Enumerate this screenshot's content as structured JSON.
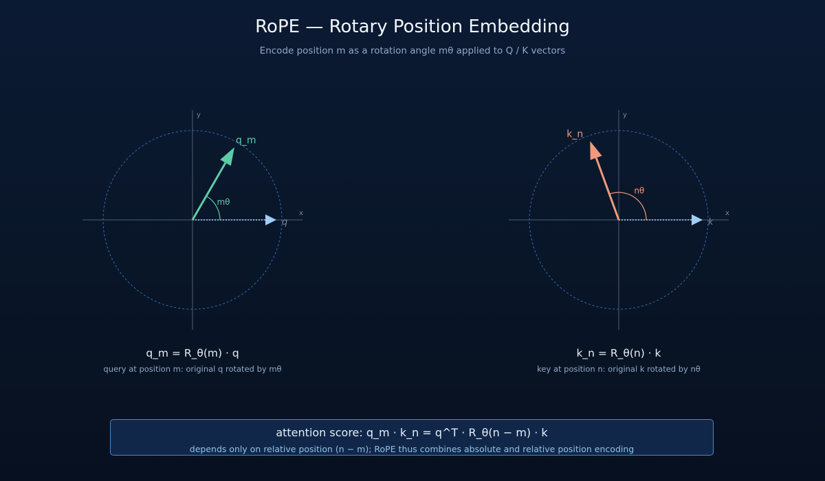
{
  "header": {
    "title": "RoPE — Rotary Position Embedding",
    "subtitle": "Encode position m as a rotation angle mθ applied to Q / K vectors"
  },
  "panels": [
    {
      "id": "query",
      "axis_x_label": "x",
      "axis_y_label": "y",
      "base_vector_label": "q",
      "rotated_vector_label": "q_m",
      "angle_label": "mθ",
      "rotation_angle_deg": 60,
      "color": "#5ecba7",
      "formula": "q_m = R_θ(m) · q",
      "note": "query at position m: original q rotated by mθ"
    },
    {
      "id": "key",
      "axis_x_label": "x",
      "axis_y_label": "y",
      "base_vector_label": "k",
      "rotated_vector_label": "k_n",
      "angle_label": "nθ",
      "rotation_angle_deg": 110,
      "color": "#ef9a7c",
      "formula": "k_n = R_θ(n) · k",
      "note": "key at position n: original k rotated by nθ"
    }
  ],
  "summary": {
    "score": "attention score: q_m · k_n = q^T · R_θ(n − m) · k",
    "note": "depends only on relative position (n − m); RoPE thus combines absolute and relative position encoding"
  },
  "colors": {
    "background": "#0b1a33",
    "base_vector": "#9fcdf7",
    "unit_circle": "#2f6db8",
    "axis": "#3a4656",
    "box_border": "#4e86c8"
  }
}
